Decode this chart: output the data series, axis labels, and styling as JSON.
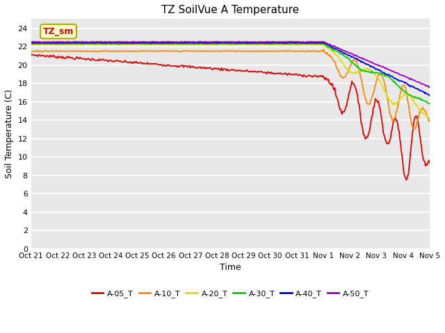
{
  "title": "TZ SoilVue A Temperature",
  "xlabel": "Time",
  "ylabel": "Soil Temperature (C)",
  "ylim": [
    0,
    25
  ],
  "yticks": [
    0,
    2,
    4,
    6,
    8,
    10,
    12,
    14,
    16,
    18,
    20,
    22,
    24
  ],
  "fig_bg_color": "#ffffff",
  "plot_bg_color": "#e8e8e8",
  "grid_color": "#f8f8f8",
  "annotation_text": "TZ_sm",
  "annotation_bg": "#ffffcc",
  "annotation_border": "#aaaa00",
  "legend_entries": [
    "A-05_T",
    "A-10_T",
    "A-20_T",
    "A-30_T",
    "A-40_T",
    "A-50_T"
  ],
  "line_colors": [
    "#dd0000",
    "#ff8800",
    "#dddd00",
    "#00cc00",
    "#0000dd",
    "#9900bb"
  ],
  "xtick_labels": [
    "Oct 21",
    "Oct 22",
    "Oct 23",
    "Oct 24",
    "Oct 25",
    "Oct 26",
    "Oct 27",
    "Oct 28",
    "Oct 29",
    "Oct 30",
    "Oct 31",
    "Nov 1",
    "Nov 2",
    "Nov 3",
    "Nov 4",
    "Nov 5"
  ],
  "n_before": 300,
  "n_after": 150,
  "transition_idx": 11
}
